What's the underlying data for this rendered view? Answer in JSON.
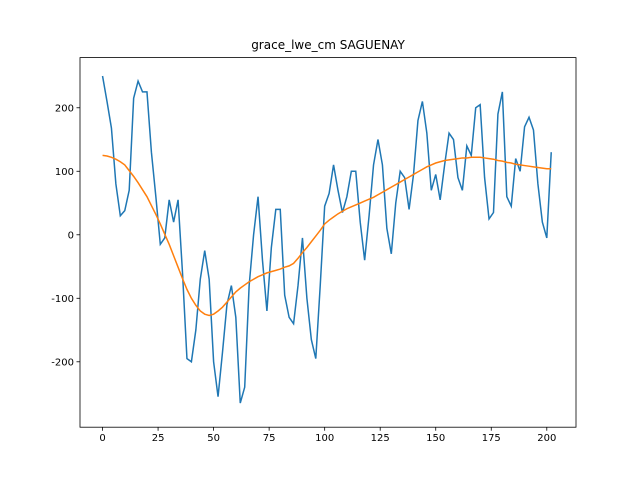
{
  "chart_data": {
    "type": "line",
    "title": "grace_lwe_cm SAGUENAY",
    "x": [
      0,
      2,
      4,
      6,
      8,
      10,
      12,
      14,
      16,
      18,
      20,
      22,
      24,
      26,
      28,
      30,
      32,
      34,
      36,
      38,
      40,
      42,
      44,
      46,
      48,
      50,
      52,
      54,
      56,
      58,
      60,
      62,
      64,
      66,
      68,
      70,
      72,
      74,
      76,
      78,
      80,
      82,
      84,
      86,
      88,
      90,
      92,
      94,
      96,
      98,
      100,
      102,
      104,
      106,
      108,
      110,
      112,
      114,
      116,
      118,
      120,
      122,
      124,
      126,
      128,
      130,
      132,
      134,
      136,
      138,
      140,
      142,
      144,
      146,
      148,
      150,
      152,
      154,
      156,
      158,
      160,
      162,
      164,
      166,
      168,
      170,
      172,
      174,
      176,
      178,
      180,
      182,
      184,
      186,
      188,
      190,
      192,
      194,
      196,
      198,
      200,
      202
    ],
    "series": [
      {
        "color": "#1f77b4",
        "values": [
          250,
          210,
          168,
          80,
          30,
          38,
          70,
          215,
          242,
          225,
          225,
          130,
          60,
          -15,
          -5,
          55,
          20,
          55,
          -60,
          -195,
          -200,
          -150,
          -70,
          -25,
          -70,
          -200,
          -255,
          -185,
          -110,
          -80,
          -130,
          -265,
          -240,
          -80,
          0,
          60,
          -40,
          -120,
          -20,
          40,
          40,
          -95,
          -130,
          -140,
          -80,
          -5,
          -100,
          -165,
          -195,
          -80,
          45,
          65,
          110,
          70,
          35,
          60,
          100,
          100,
          20,
          -40,
          30,
          110,
          150,
          110,
          10,
          -30,
          50,
          100,
          90,
          40,
          95,
          180,
          210,
          160,
          70,
          95,
          55,
          110,
          160,
          150,
          90,
          70,
          140,
          125,
          200,
          205,
          90,
          25,
          35,
          190,
          225,
          60,
          45,
          120,
          100,
          170,
          185,
          165,
          80,
          20,
          -5,
          130
        ]
      },
      {
        "color": "#ff7f0e",
        "values": [
          125,
          124,
          122,
          119,
          115,
          110,
          101,
          92,
          82,
          71,
          60,
          46,
          32,
          17,
          1,
          -15,
          -33,
          -51,
          -69,
          -86,
          -100,
          -111,
          -120,
          -125,
          -127,
          -125,
          -120,
          -114,
          -106,
          -98,
          -90,
          -84,
          -79,
          -74,
          -70,
          -66,
          -63,
          -60,
          -58,
          -56,
          -54,
          -51,
          -49,
          -45,
          -37,
          -28,
          -20,
          -11,
          -2,
          7,
          17,
          23,
          28,
          33,
          37,
          41,
          44,
          47,
          50,
          53,
          56,
          59,
          63,
          67,
          71,
          75,
          79,
          83,
          87,
          91,
          95,
          99,
          103,
          107,
          110,
          113,
          115,
          117,
          118,
          119,
          120,
          121,
          121,
          122,
          122,
          122,
          121,
          120,
          119,
          117,
          116,
          114,
          113,
          111,
          110,
          109,
          108,
          107,
          106,
          105,
          104,
          104
        ]
      }
    ],
    "xlim": [
      -10.15,
      213.15
    ],
    "ylim": [
      -303,
      279
    ],
    "xticks": [
      0,
      25,
      50,
      75,
      100,
      125,
      150,
      175,
      200
    ],
    "yticks": [
      -200,
      -100,
      0,
      100,
      200
    ]
  }
}
